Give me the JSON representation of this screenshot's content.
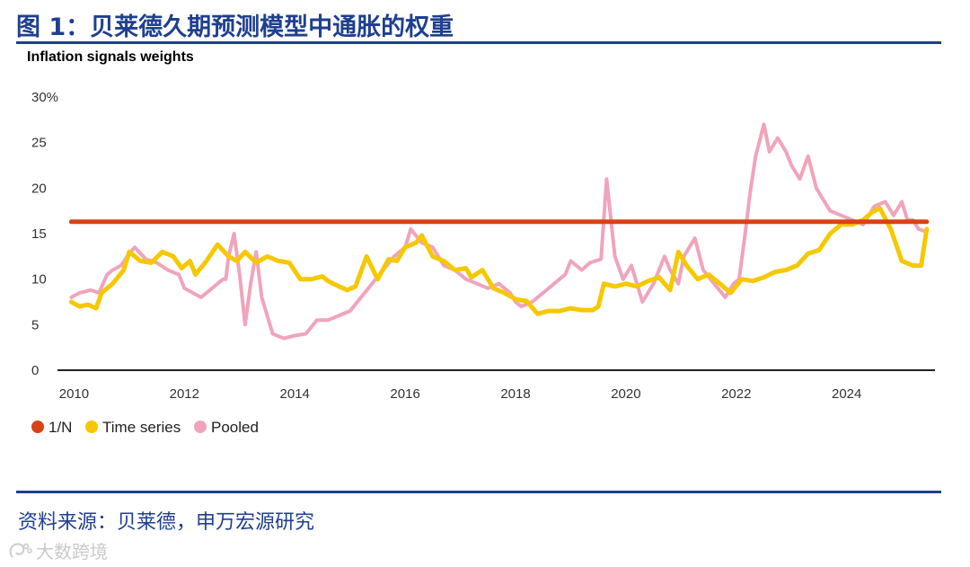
{
  "header": {
    "title": "图 1：贝莱德久期预测模型中通胀的权重"
  },
  "footer": {
    "source": "资料来源：贝莱德，申万宏源研究",
    "watermark": "大数跨境"
  },
  "colors": {
    "brand": "#1f3f8f",
    "one_over_n": "#d84315",
    "time_series": "#f5c800",
    "pooled": "#f0a4bb"
  },
  "chart_data": {
    "type": "line",
    "title": "Inflation signals weights",
    "xlabel": "",
    "ylabel": "",
    "xlim": [
      2009.7,
      2025.6
    ],
    "ylim": [
      0,
      30
    ],
    "x_ticks": [
      2010,
      2012,
      2014,
      2016,
      2018,
      2020,
      2022,
      2024
    ],
    "x_tick_labels": [
      "2010",
      "2012",
      "2014",
      "2016",
      "2018",
      "2020",
      "2022",
      "2024"
    ],
    "y_ticks": [
      0,
      5,
      10,
      15,
      20,
      25,
      30
    ],
    "y_tick_labels": [
      "0",
      "5",
      "10",
      "15",
      "20",
      "25",
      "30%"
    ],
    "legend_position": "bottom-left",
    "series": [
      {
        "name": "1/N",
        "color": "#d84315",
        "x": [
          2009.95,
          2025.45
        ],
        "y": [
          16.3,
          16.3
        ]
      },
      {
        "name": "Time series",
        "color": "#f5c800",
        "x": [
          2009.95,
          2010.1,
          2010.25,
          2010.4,
          2010.5,
          2010.7,
          2010.9,
          2011.0,
          2011.2,
          2011.4,
          2011.6,
          2011.8,
          2011.95,
          2012.1,
          2012.2,
          2012.4,
          2012.6,
          2012.8,
          2012.95,
          2013.1,
          2013.3,
          2013.5,
          2013.7,
          2013.9,
          2014.1,
          2014.3,
          2014.5,
          2014.6,
          2014.8,
          2014.95,
          2015.1,
          2015.3,
          2015.5,
          2015.7,
          2015.85,
          2016.0,
          2016.2,
          2016.3,
          2016.5,
          2016.7,
          2016.9,
          2017.1,
          2017.2,
          2017.4,
          2017.6,
          2017.8,
          2018.0,
          2018.2,
          2018.4,
          2018.6,
          2018.8,
          2019.0,
          2019.2,
          2019.4,
          2019.5,
          2019.6,
          2019.8,
          2020.0,
          2020.2,
          2020.4,
          2020.6,
          2020.8,
          2020.95,
          2021.1,
          2021.3,
          2021.5,
          2021.7,
          2021.9,
          2022.1,
          2022.3,
          2022.5,
          2022.7,
          2022.9,
          2023.1,
          2023.3,
          2023.5,
          2023.7,
          2023.9,
          2024.1,
          2024.3,
          2024.45,
          2024.6,
          2024.8,
          2025.0,
          2025.2,
          2025.35,
          2025.45
        ],
        "y": [
          7.5,
          7.0,
          7.2,
          6.8,
          8.5,
          9.5,
          11.0,
          13.0,
          12.0,
          11.8,
          13.0,
          12.5,
          11.2,
          12.0,
          10.5,
          12.0,
          13.8,
          12.5,
          12.0,
          13.0,
          11.8,
          12.5,
          12.0,
          11.8,
          10.0,
          10.0,
          10.3,
          9.8,
          9.2,
          8.8,
          9.2,
          12.5,
          10.0,
          12.2,
          12.0,
          13.5,
          14.0,
          14.8,
          12.5,
          12.0,
          11.0,
          11.2,
          10.2,
          11.0,
          9.0,
          8.5,
          7.8,
          7.6,
          6.2,
          6.5,
          6.5,
          6.8,
          6.6,
          6.6,
          7.0,
          9.5,
          9.2,
          9.5,
          9.2,
          9.8,
          10.2,
          8.8,
          13.0,
          11.5,
          10.0,
          10.5,
          9.5,
          8.5,
          10.0,
          9.8,
          10.2,
          10.8,
          11.0,
          11.5,
          12.8,
          13.2,
          15.0,
          16.0,
          16.0,
          16.5,
          17.3,
          17.8,
          15.5,
          12.0,
          11.5,
          11.5,
          15.5
        ]
      },
      {
        "name": "Pooled",
        "color": "#f0a4bb",
        "x": [
          2009.95,
          2010.1,
          2010.3,
          2010.45,
          2010.6,
          2010.7,
          2010.85,
          2011.0,
          2011.1,
          2011.3,
          2011.5,
          2011.7,
          2011.9,
          2012.0,
          2012.3,
          2012.5,
          2012.7,
          2012.75,
          2012.8,
          2012.9,
          2013.0,
          2013.1,
          2013.2,
          2013.3,
          2013.4,
          2013.6,
          2013.8,
          2014.0,
          2014.2,
          2014.4,
          2014.6,
          2014.8,
          2015.0,
          2015.2,
          2015.4,
          2015.6,
          2015.8,
          2016.0,
          2016.1,
          2016.3,
          2016.5,
          2016.7,
          2016.9,
          2017.1,
          2017.3,
          2017.5,
          2017.7,
          2017.9,
          2018.0,
          2018.1,
          2018.3,
          2018.5,
          2018.7,
          2018.9,
          2019.0,
          2019.2,
          2019.35,
          2019.45,
          2019.55,
          2019.65,
          2019.8,
          2019.95,
          2020.1,
          2020.3,
          2020.5,
          2020.7,
          2020.8,
          2020.95,
          2021.05,
          2021.25,
          2021.4,
          2021.6,
          2021.8,
          2021.95,
          2022.05,
          2022.15,
          2022.25,
          2022.35,
          2022.5,
          2022.6,
          2022.75,
          2022.9,
          2023.0,
          2023.15,
          2023.3,
          2023.45,
          2023.55,
          2023.7,
          2023.9,
          2024.1,
          2024.3,
          2024.5,
          2024.7,
          2024.85,
          2025.0,
          2025.1,
          2025.2,
          2025.3,
          2025.45
        ],
        "y": [
          8.0,
          8.5,
          8.8,
          8.5,
          10.5,
          11.0,
          11.5,
          12.8,
          13.5,
          12.2,
          11.8,
          11.0,
          10.5,
          9.0,
          8.0,
          9.0,
          10.0,
          10.0,
          12.5,
          15.0,
          10.5,
          5.0,
          9.5,
          13.0,
          8.0,
          4.0,
          3.5,
          3.8,
          4.0,
          5.5,
          5.5,
          6.0,
          6.5,
          8.0,
          9.5,
          11.0,
          12.5,
          13.5,
          15.5,
          14.0,
          13.5,
          11.5,
          11.0,
          10.0,
          9.5,
          9.0,
          9.5,
          8.5,
          7.5,
          7.0,
          7.5,
          8.5,
          9.5,
          10.5,
          12.0,
          11.0,
          11.8,
          12.0,
          12.2,
          21.0,
          12.5,
          10.0,
          11.5,
          7.5,
          9.5,
          12.5,
          11.0,
          9.5,
          12.5,
          14.5,
          11.0,
          9.5,
          8.0,
          9.5,
          10.0,
          14.5,
          19.5,
          23.5,
          27.0,
          24.0,
          25.5,
          24.0,
          22.5,
          21.0,
          23.5,
          20.0,
          19.0,
          17.5,
          17.0,
          16.5,
          16.0,
          18.0,
          18.5,
          17.0,
          18.5,
          16.5,
          16.5,
          15.5,
          15.2
        ]
      }
    ]
  }
}
